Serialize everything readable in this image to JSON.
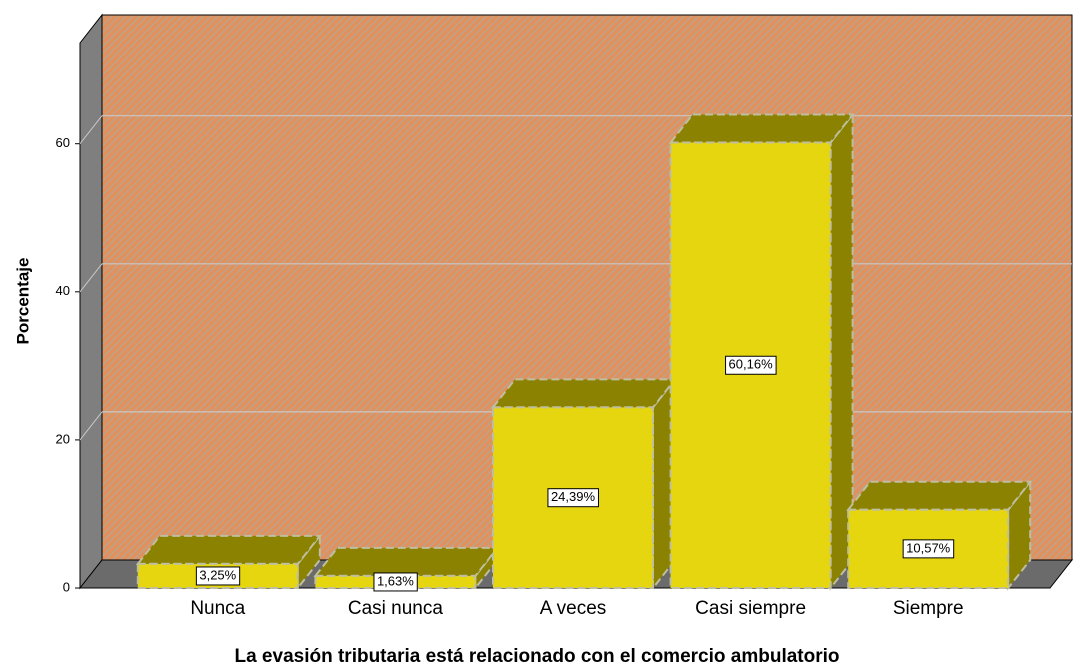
{
  "chart_data": {
    "type": "bar3d",
    "x_label": "La evasión tributaria está relacionado con el comercio ambulatorio",
    "y_label": "Porcentaje",
    "categories": [
      "Nunca",
      "Casi nunca",
      "A veces",
      "Casi siempre",
      "Siempre"
    ],
    "values": [
      3.25,
      1.63,
      24.39,
      60.16,
      10.57
    ],
    "value_labels": [
      "3,25%",
      "1,63%",
      "24,39%",
      "60,16%",
      "10,57%"
    ],
    "color": "#e6d60f",
    "ylim": [
      0,
      73.6
    ],
    "yticks": [
      0,
      20,
      40,
      60
    ],
    "grid": true
  }
}
